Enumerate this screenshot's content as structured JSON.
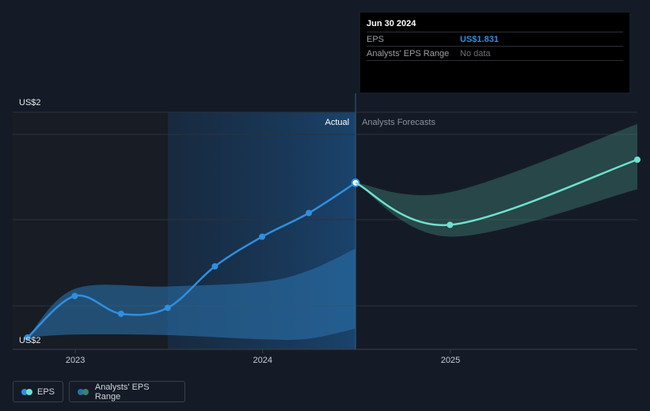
{
  "chart_data": {
    "type": "line",
    "title": "",
    "y_axis_labels": [
      "US$2",
      "US$2"
    ],
    "x_tick_labels": [
      "2023",
      "2024",
      "2025"
    ],
    "regions": {
      "actual_label": "Actual",
      "forecast_label": "Analysts Forecasts"
    },
    "grid": true,
    "legend_position": "bottom-left",
    "series": [
      {
        "name": "EPS",
        "kind": "actual",
        "color": "#2f8fe0",
        "points": [
          {
            "x": "2022-09-30",
            "y": 1.57
          },
          {
            "x": "2022-12-31",
            "y": 1.64
          },
          {
            "x": "2023-03-31",
            "y": 1.61
          },
          {
            "x": "2023-06-30",
            "y": 1.62
          },
          {
            "x": "2023-09-30",
            "y": 1.69
          },
          {
            "x": "2023-12-31",
            "y": 1.74
          },
          {
            "x": "2024-03-31",
            "y": 1.78
          },
          {
            "x": "2024-06-30",
            "y": 1.831
          }
        ]
      },
      {
        "name": "EPS",
        "kind": "forecast",
        "color": "#6fe0cf",
        "points": [
          {
            "x": "2024-06-30",
            "y": 1.831
          },
          {
            "x": "2024-12-31",
            "y": 1.76
          },
          {
            "x": "2025-12-31",
            "y": 1.87
          }
        ]
      },
      {
        "name": "Analysts' EPS Range",
        "kind": "range-past",
        "color": "#2a6fa8",
        "low": [
          {
            "x": "2022-09-30",
            "y": 1.57
          },
          {
            "x": "2022-12-31",
            "y": 1.575
          },
          {
            "x": "2023-06-30",
            "y": 1.574
          },
          {
            "x": "2023-12-31",
            "y": 1.567
          },
          {
            "x": "2024-03-31",
            "y": 1.568
          },
          {
            "x": "2024-06-30",
            "y": 1.585
          }
        ],
        "high": [
          {
            "x": "2022-09-30",
            "y": 1.57
          },
          {
            "x": "2022-12-31",
            "y": 1.652
          },
          {
            "x": "2023-06-30",
            "y": 1.656
          },
          {
            "x": "2023-12-31",
            "y": 1.664
          },
          {
            "x": "2024-03-31",
            "y": 1.683
          },
          {
            "x": "2024-06-30",
            "y": 1.72
          }
        ]
      },
      {
        "name": "Analysts' EPS Range",
        "kind": "range-forecast",
        "color": "#3d7f73",
        "low": [
          {
            "x": "2024-06-30",
            "y": 1.831
          },
          {
            "x": "2024-12-31",
            "y": 1.74
          },
          {
            "x": "2025-12-31",
            "y": 1.82
          }
        ],
        "high": [
          {
            "x": "2024-06-30",
            "y": 1.831
          },
          {
            "x": "2024-12-31",
            "y": 1.815
          },
          {
            "x": "2025-12-31",
            "y": 1.93
          }
        ]
      }
    ],
    "actual_shaded_start": "2023-06-30",
    "actual_shaded_end": "2024-06-30",
    "x_range": [
      "2022-09-01",
      "2025-12-31"
    ],
    "y_range": [
      1.55,
      1.95
    ]
  },
  "tooltip": {
    "date": "Jun 30 2024",
    "rows": [
      {
        "label": "EPS",
        "value": "US$1.831"
      },
      {
        "label": "Analysts' EPS Range",
        "value": "No data"
      }
    ]
  },
  "legend": [
    {
      "label": "EPS",
      "colors": [
        "#2f8fe0",
        "#6fe0cf"
      ]
    },
    {
      "label": "Analysts' EPS Range",
      "colors": [
        "#2a6fa8",
        "#3d7f73"
      ]
    }
  ]
}
